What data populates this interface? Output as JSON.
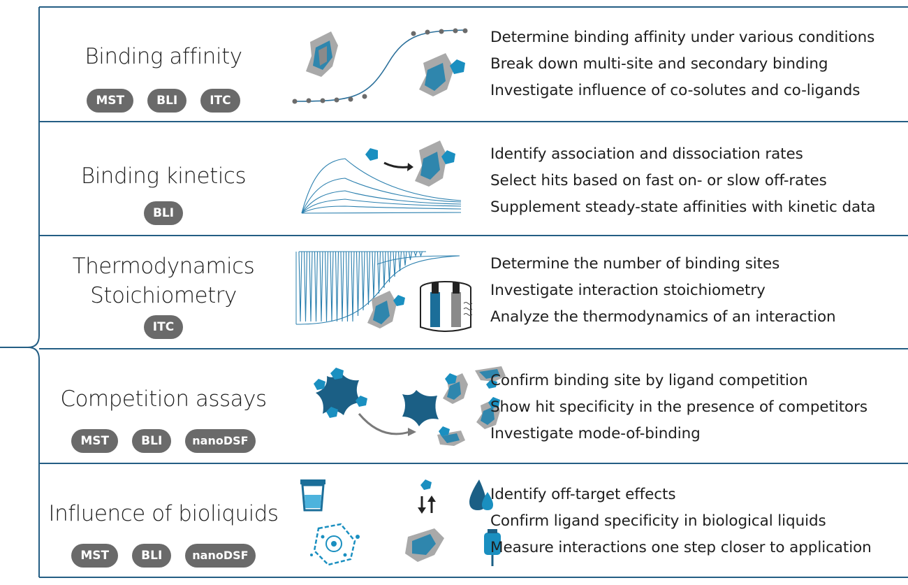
{
  "colors": {
    "accent": "#245e84",
    "tag_bg": "#6a6a6a",
    "protein_teal": "#1b7ea6",
    "protein_gray": "#9a9a9a",
    "ligand_blue": "#1a8fc0"
  },
  "rows": [
    {
      "title_lines": [
        "Binding affinity"
      ],
      "tags": [
        "MST",
        "BLI",
        "ITC"
      ],
      "bullets": [
        "Determine binding affinity under various conditions",
        "Break down multi-site and secondary binding",
        "Investigate influence of co-solutes and co-ligands"
      ]
    },
    {
      "title_lines": [
        "Binding kinetics"
      ],
      "tags": [
        "BLI"
      ],
      "bullets": [
        "Identify association and dissociation rates",
        "Select hits based on fast on- or slow off-rates",
        "Supplement steady-state affinities with kinetic data"
      ]
    },
    {
      "title_lines": [
        "Thermodynamics",
        "Stoichiometry"
      ],
      "tags": [
        "ITC"
      ],
      "bullets": [
        "Determine the number of binding sites",
        "Investigate interaction stoichiometry",
        "Analyze the thermodynamics of an interaction"
      ]
    },
    {
      "title_lines": [
        "Competition assays"
      ],
      "tags": [
        "MST",
        "BLI",
        "nanoDSF"
      ],
      "bullets": [
        "Confirm binding site by ligand competition",
        "Show hit specificity in the presence of competitors",
        "Investigate mode-of-binding"
      ]
    },
    {
      "title_lines": [
        "Influence of bioliquids"
      ],
      "tags": [
        "MST",
        "BLI",
        "nanoDSF"
      ],
      "bullets": [
        "Identify off-target effects",
        "Confirm ligand specificity in biological liquids",
        "Measure interactions one step closer to application"
      ]
    }
  ]
}
